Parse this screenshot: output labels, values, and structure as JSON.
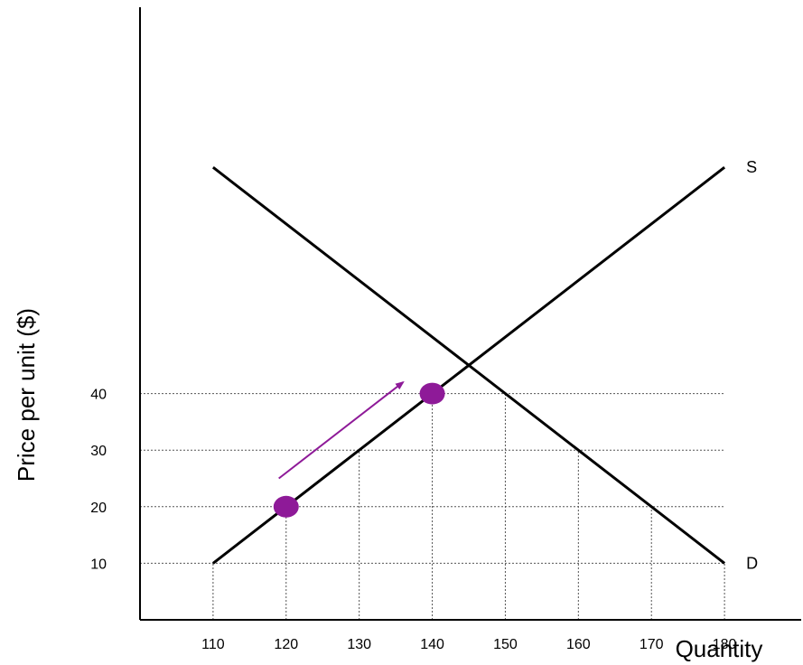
{
  "chart_data": {
    "type": "line",
    "xlabel": "Quantity",
    "ylabel": "Price per unit ($)",
    "x_ticks": [
      110,
      120,
      130,
      140,
      150,
      160,
      170,
      180
    ],
    "y_ticks": [
      10,
      20,
      30,
      40
    ],
    "series": [
      {
        "name": "S",
        "points": [
          [
            110,
            10
          ],
          [
            180,
            80
          ]
        ],
        "color": "#000000"
      },
      {
        "name": "D",
        "points": [
          [
            110,
            80
          ],
          [
            180,
            10
          ]
        ],
        "color": "#000000"
      }
    ],
    "highlighted_points": [
      {
        "x": 120,
        "y": 20,
        "color": "#8e1a98"
      },
      {
        "x": 140,
        "y": 40,
        "color": "#8e1a98"
      }
    ],
    "arrow": {
      "from": [
        119,
        25
      ],
      "to": [
        136,
        42
      ],
      "color": "#8e1a98"
    },
    "xlim": [
      100,
      190
    ],
    "ylim": [
      0,
      100
    ],
    "grid": "dotted guides at tick values"
  }
}
